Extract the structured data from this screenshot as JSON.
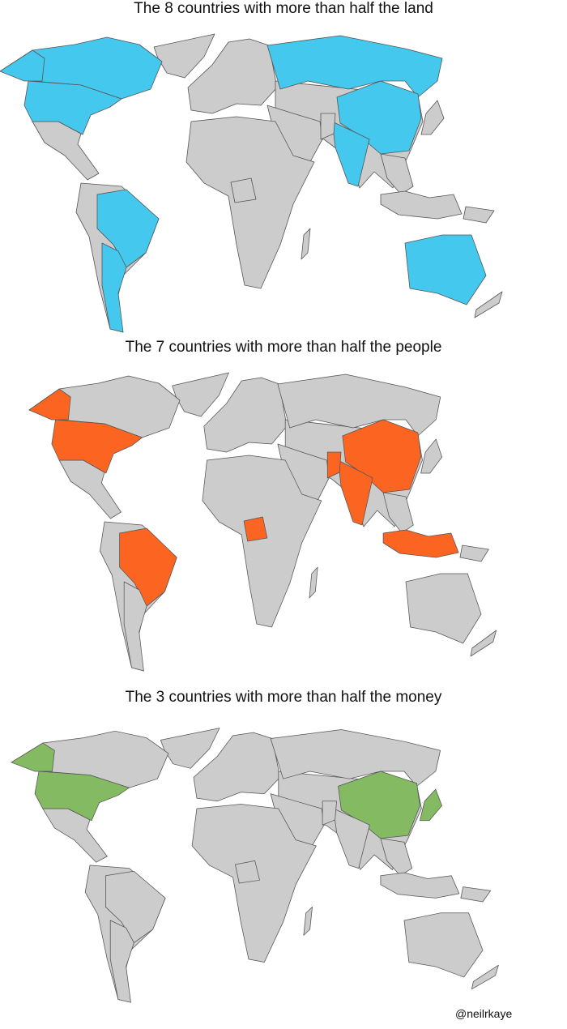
{
  "maps": [
    {
      "title": "The 8 countries with more than half the land",
      "highlight_color": "#44c8ee",
      "highlighted": [
        "russia",
        "canada",
        "usa",
        "china",
        "brazil",
        "australia",
        "india",
        "argentina"
      ]
    },
    {
      "title": "The 7 countries with more than half the people",
      "highlight_color": "#fc6521",
      "highlighted": [
        "china",
        "india",
        "usa",
        "indonesia",
        "pakistan",
        "brazil",
        "nigeria"
      ]
    },
    {
      "title": "The 3 countries with more than half the money",
      "highlight_color": "#84bb62",
      "highlighted": [
        "usa",
        "china",
        "japan"
      ]
    }
  ],
  "base_color": "#cccccc",
  "credit": "@neilrkaye"
}
